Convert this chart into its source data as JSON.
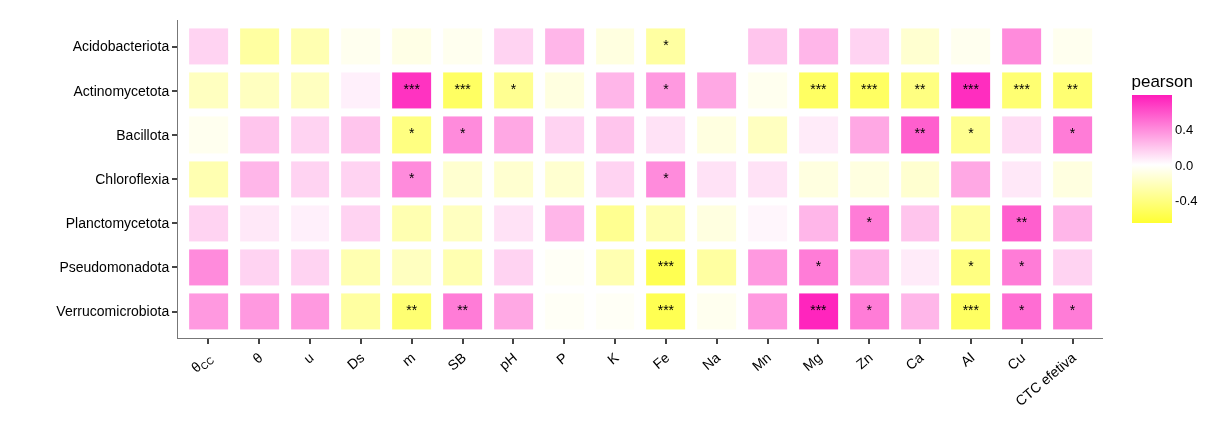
{
  "chart_data": {
    "type": "heatmap",
    "legend_title": "pearson",
    "categories": [
      "θ$_{CC}$",
      "θ",
      "u",
      "Ds",
      "m",
      "SB",
      "pH",
      "P",
      "K",
      "Fe",
      "Na",
      "Mn",
      "Mg",
      "Zn",
      "Ca",
      "Al",
      "Cu",
      "CTC efetiva"
    ],
    "y_categories": [
      "Acidobacteriota",
      "Actinomycetota",
      "Bacillota",
      "Chloroflexia",
      "Planctomycetota",
      "Pseudomonadota",
      "Verrucomicrobiota"
    ],
    "cells": [
      [
        0.15,
        -0.3,
        -0.25,
        -0.05,
        -0.08,
        -0.05,
        0.15,
        0.25,
        -0.1,
        -0.3,
        0.0,
        0.2,
        0.25,
        0.15,
        -0.15,
        -0.05,
        0.4,
        -0.05
      ],
      [
        -0.2,
        -0.2,
        -0.2,
        0.05,
        0.7,
        -0.5,
        -0.35,
        -0.1,
        0.25,
        0.35,
        0.3,
        -0.05,
        -0.5,
        -0.5,
        -0.4,
        0.72,
        -0.45,
        -0.45
      ],
      [
        -0.05,
        0.2,
        0.15,
        0.2,
        -0.4,
        0.4,
        0.3,
        0.15,
        0.2,
        0.1,
        -0.1,
        -0.2,
        0.07,
        0.3,
        0.55,
        -0.35,
        0.12,
        0.45
      ],
      [
        -0.25,
        0.25,
        0.15,
        0.15,
        0.4,
        -0.15,
        -0.15,
        -0.15,
        0.15,
        0.4,
        0.1,
        0.1,
        -0.1,
        -0.1,
        -0.15,
        0.3,
        0.08,
        -0.1
      ],
      [
        0.15,
        0.08,
        0.05,
        0.15,
        -0.25,
        -0.2,
        0.1,
        0.25,
        -0.35,
        -0.25,
        -0.1,
        0.03,
        0.25,
        0.45,
        0.2,
        -0.3,
        0.55,
        0.25
      ],
      [
        0.4,
        0.15,
        0.15,
        -0.25,
        -0.2,
        -0.25,
        0.15,
        -0.03,
        -0.25,
        -0.55,
        -0.3,
        0.35,
        0.45,
        0.25,
        0.07,
        -0.4,
        0.45,
        0.15
      ],
      [
        0.35,
        0.35,
        0.35,
        -0.3,
        -0.45,
        0.45,
        0.3,
        -0.03,
        -0.03,
        -0.55,
        -0.05,
        0.35,
        0.75,
        0.45,
        0.25,
        -0.5,
        0.5,
        0.45
      ]
    ],
    "cell_labels": [
      [
        null,
        null,
        null,
        null,
        null,
        null,
        null,
        null,
        null,
        "*",
        null,
        null,
        null,
        null,
        null,
        null,
        null,
        null
      ],
      [
        null,
        null,
        null,
        null,
        "***",
        "***",
        "*",
        null,
        null,
        "*",
        null,
        null,
        "***",
        "***",
        "**",
        "***",
        "***",
        "**"
      ],
      [
        null,
        null,
        null,
        null,
        "*",
        "*",
        null,
        null,
        null,
        null,
        null,
        null,
        null,
        null,
        "**",
        "*",
        null,
        "*"
      ],
      [
        null,
        null,
        null,
        null,
        "*",
        null,
        null,
        null,
        null,
        "*",
        null,
        null,
        null,
        null,
        null,
        null,
        null,
        null
      ],
      [
        null,
        null,
        null,
        null,
        null,
        null,
        null,
        null,
        null,
        null,
        null,
        null,
        null,
        "*",
        null,
        null,
        "**",
        null
      ],
      [
        null,
        null,
        null,
        null,
        null,
        null,
        null,
        null,
        null,
        "***",
        null,
        null,
        "*",
        null,
        null,
        "*",
        "*",
        null
      ],
      [
        null,
        null,
        null,
        null,
        "**",
        "**",
        null,
        null,
        null,
        "***",
        null,
        null,
        "***",
        "*",
        null,
        "***",
        "*",
        "*"
      ]
    ],
    "clim": [
      -0.65,
      0.78
    ],
    "cticks": [
      -0.4,
      {
        "value": 0.0,
        "label": "0.0"
      },
      0.4
    ]
  }
}
